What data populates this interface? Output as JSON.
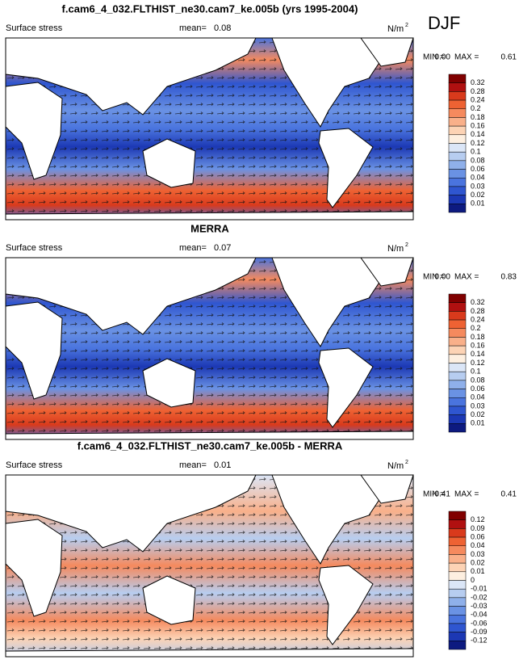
{
  "season": "DJF",
  "panels": [
    {
      "title": "f.cam6_4_032.FLTHIST_ne30.cam7_ke.005b (yrs 1995-2004)",
      "field": "Surface stress",
      "mean_label": "mean=",
      "mean": "0.08",
      "units": "N/m",
      "units_sup": "2",
      "min_label": "MIN =",
      "min": "0.00",
      "max_label": "MAX =",
      "max": "0.61",
      "levels": [
        "0.32",
        "0.28",
        "0.24",
        "0.2",
        "0.18",
        "0.16",
        "0.14",
        "0.12",
        "0.1",
        "0.08",
        "0.06",
        "0.04",
        "0.03",
        "0.02",
        "0.01"
      ]
    },
    {
      "title": "MERRA",
      "field": "Surface stress",
      "mean_label": "mean=",
      "mean": "0.07",
      "units": "N/m",
      "units_sup": "2",
      "min_label": "MIN =",
      "min": "0.00",
      "max_label": "MAX =",
      "max": "0.83",
      "levels": [
        "0.32",
        "0.28",
        "0.24",
        "0.2",
        "0.18",
        "0.16",
        "0.14",
        "0.12",
        "0.1",
        "0.08",
        "0.06",
        "0.04",
        "0.03",
        "0.02",
        "0.01"
      ]
    },
    {
      "title": "f.cam6_4_032.FLTHIST_ne30.cam7_ke.005b - MERRA",
      "field": "Surface stress",
      "mean_label": "mean=",
      "mean": "0.01",
      "units": "N/m",
      "units_sup": "2",
      "min_label": "MIN =",
      "min": "-0.41",
      "max_label": "MAX =",
      "max": "0.41",
      "levels": [
        "0.12",
        "0.09",
        "0.06",
        "0.04",
        "0.03",
        "0.02",
        "0.01",
        "0",
        "-0.01",
        "-0.02",
        "-0.03",
        "-0.04",
        "-0.06",
        "-0.09",
        "-0.12"
      ]
    }
  ],
  "colors": [
    "#800000",
    "#b01010",
    "#d93a1c",
    "#ee6233",
    "#f58a5e",
    "#f9b08a",
    "#fcd3b5",
    "#fdefe0",
    "#dbe6f7",
    "#b7cdf0",
    "#8fb0ea",
    "#6a92e4",
    "#4a74de",
    "#2f56d0",
    "#1c38b4",
    "#0d1a80"
  ]
}
